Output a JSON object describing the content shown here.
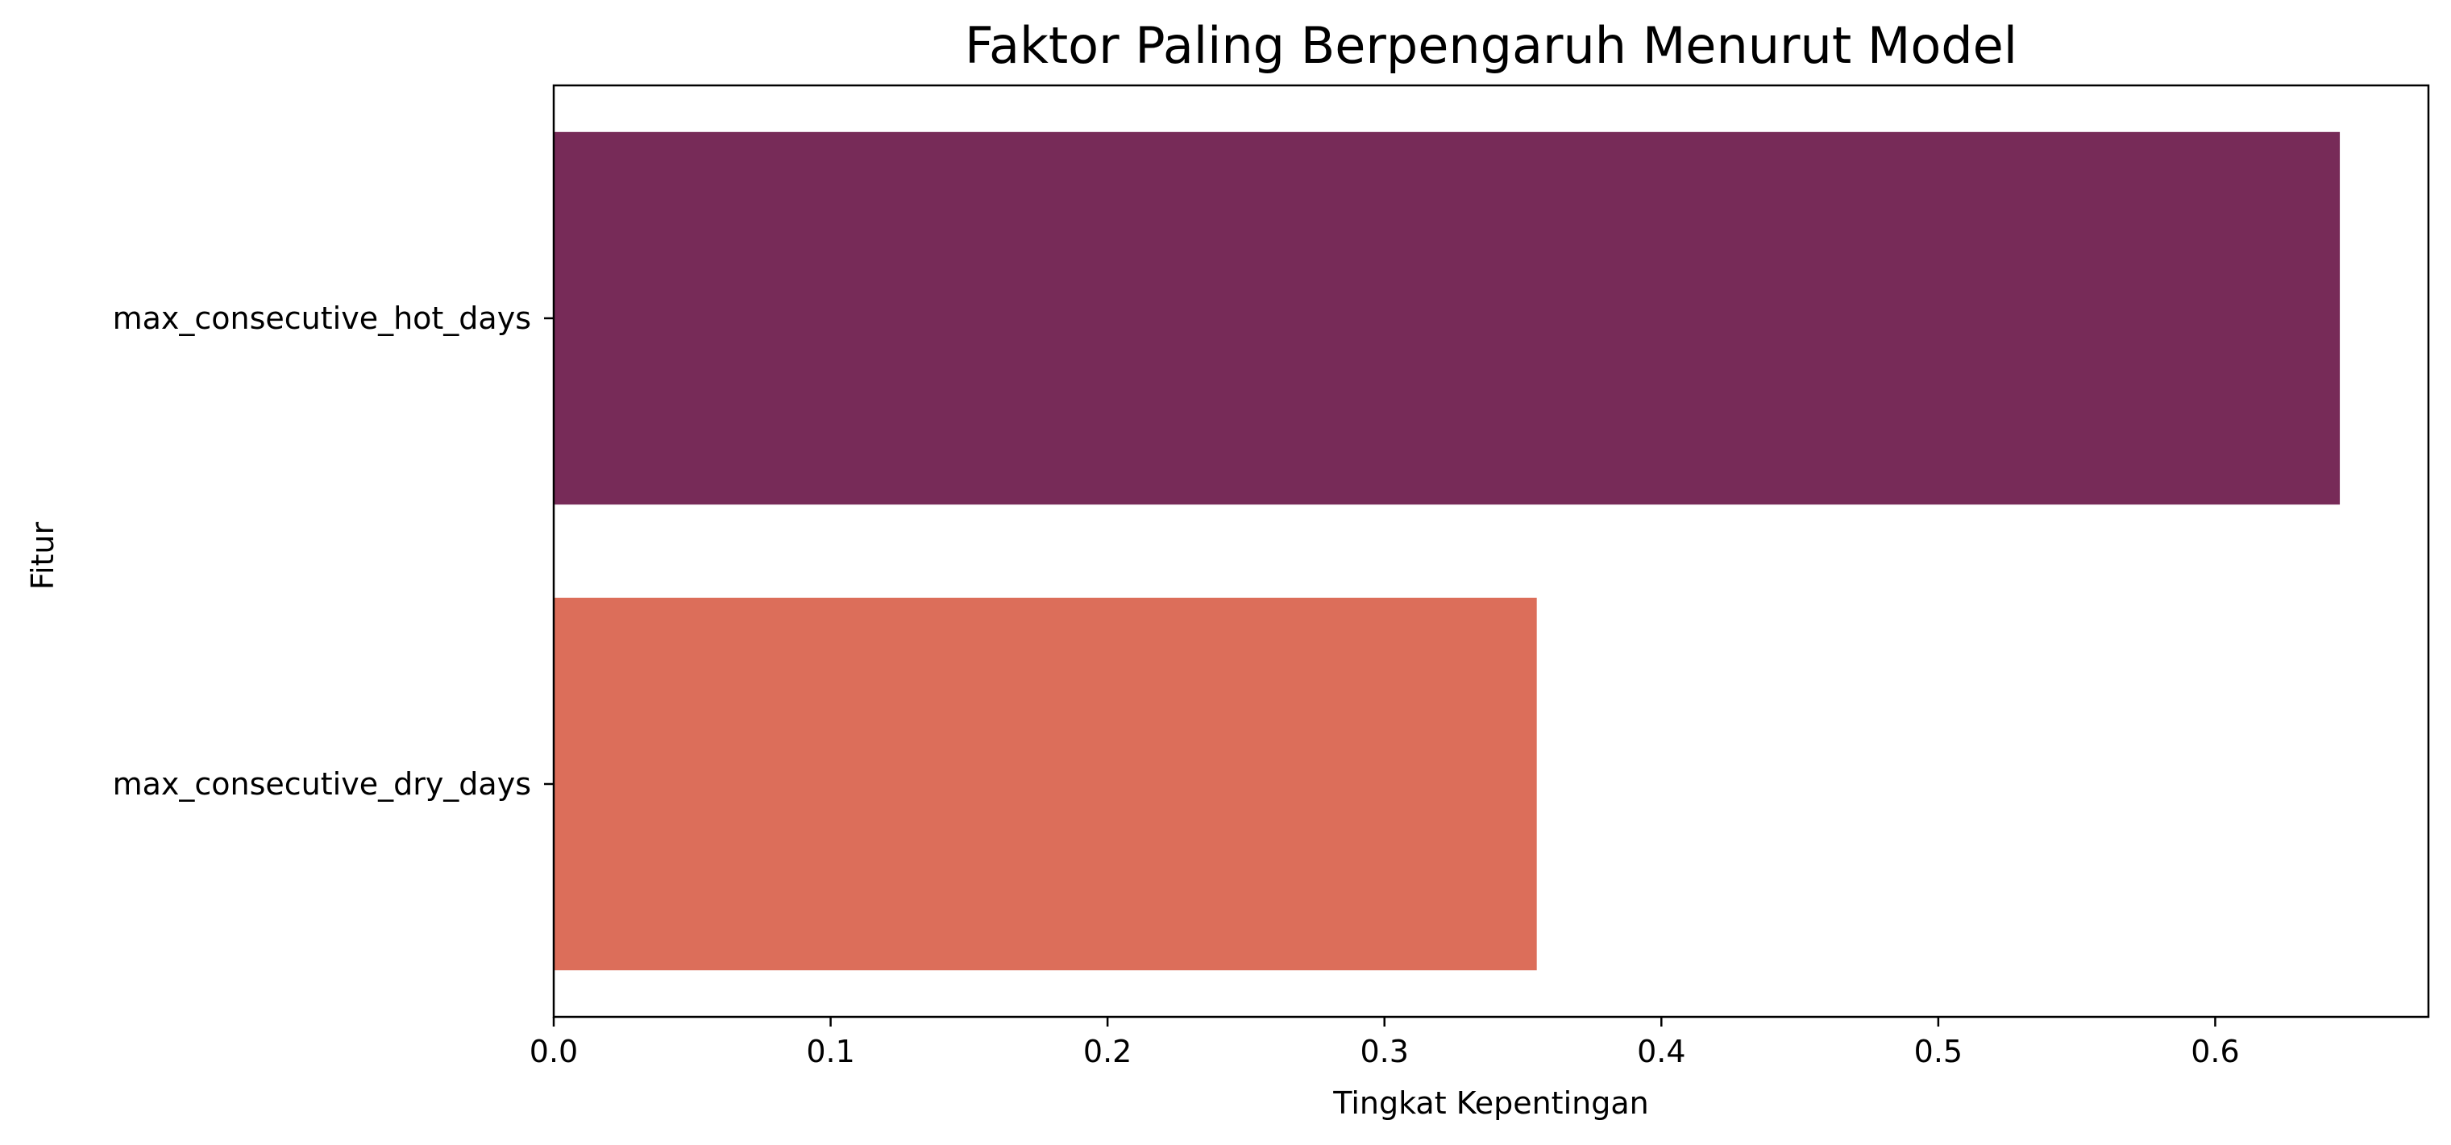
{
  "chart_data": {
    "type": "bar",
    "orientation": "horizontal",
    "title": "Faktor Paling Berpengaruh Menurut Model",
    "xlabel": "Tingkat Kepentingan",
    "ylabel": "Fitur",
    "categories": [
      "max_consecutive_hot_days",
      "max_consecutive_dry_days"
    ],
    "values": [
      0.645,
      0.355
    ],
    "colors": [
      "#772b58",
      "#dc6e5a"
    ],
    "xlim": [
      0,
      0.677
    ],
    "xticks": [
      0.0,
      0.1,
      0.2,
      0.3,
      0.4,
      0.5,
      0.6
    ],
    "xtick_labels": [
      "0.0",
      "0.1",
      "0.2",
      "0.3",
      "0.4",
      "0.5",
      "0.6"
    ],
    "grid": false,
    "legend": "none"
  }
}
